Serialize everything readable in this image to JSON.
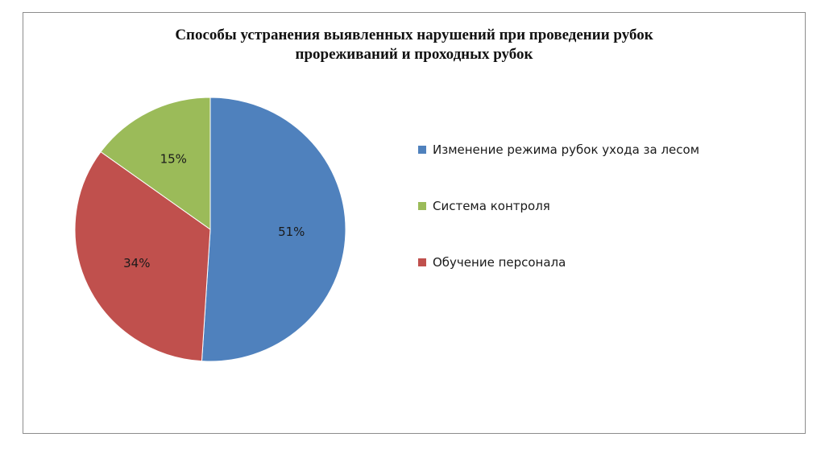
{
  "chart_data": {
    "type": "pie",
    "title": "Способы устранения выявленных нарушений при проведении рубок прореживаний и проходных рубок",
    "title_lines": [
      "Способы устранения выявленных нарушений при проведении рубок",
      "прореживаний и проходных рубок"
    ],
    "legend_position": "right",
    "slices": [
      {
        "label": "Изменение режима рубок ухода за лесом",
        "value": 51,
        "display": "51%",
        "color": "#4f81bd"
      },
      {
        "label": "Обучение персонала",
        "value": 34,
        "display": "34%",
        "color": "#c0504d"
      },
      {
        "label": "Система контроля",
        "value": 15,
        "display": "15%",
        "color": "#9bbb59"
      }
    ],
    "legend_order": [
      0,
      2,
      1
    ]
  }
}
